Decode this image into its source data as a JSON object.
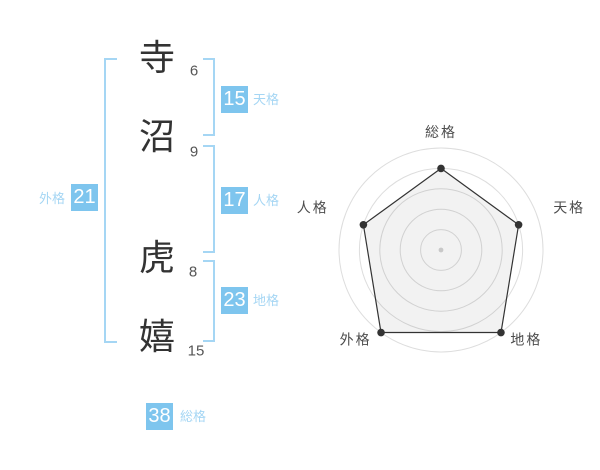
{
  "name_analysis": {
    "characters": [
      {
        "char": "寺",
        "strokes": "6"
      },
      {
        "char": "沼",
        "strokes": "9"
      },
      {
        "char": "虎",
        "strokes": "8"
      },
      {
        "char": "嬉",
        "strokes": "15"
      }
    ],
    "kaku": {
      "tenkaku": {
        "label": "天格",
        "value": "15"
      },
      "jinkaku": {
        "label": "人格",
        "value": "17"
      },
      "chikaku": {
        "label": "地格",
        "value": "23"
      },
      "gaikaku": {
        "label": "外格",
        "value": "21"
      },
      "soukaku": {
        "label": "総格",
        "value": "38"
      }
    }
  },
  "colors": {
    "badge_blue": "#7ec5ee",
    "bracket_blue": "#a5d6f4",
    "kanji_dark": "#333333",
    "stroke_number_gray": "#555555"
  },
  "chart_data": {
    "type": "radar",
    "categories": [
      "総格",
      "天格",
      "地格",
      "外格",
      "人格"
    ],
    "values": [
      4,
      4,
      5,
      5,
      4
    ],
    "max": 5,
    "rings": 5,
    "center": [
      441,
      250
    ],
    "radius": 102,
    "start_angle_deg": -90,
    "direction": "clockwise",
    "label_radius_offset": 16,
    "style": {
      "ring_color": "#dddddd",
      "line_color": "#333333",
      "fill_color": "#000000",
      "fill_opacity": 0.05,
      "dot_color": "#333333",
      "dot_radius": 3.8,
      "center_dot_color": "#c8c8c8",
      "center_dot_radius": 2.4,
      "label_color": "#4d4d4d",
      "label_font_size": 14,
      "label_letter_spacing": 2
    }
  }
}
